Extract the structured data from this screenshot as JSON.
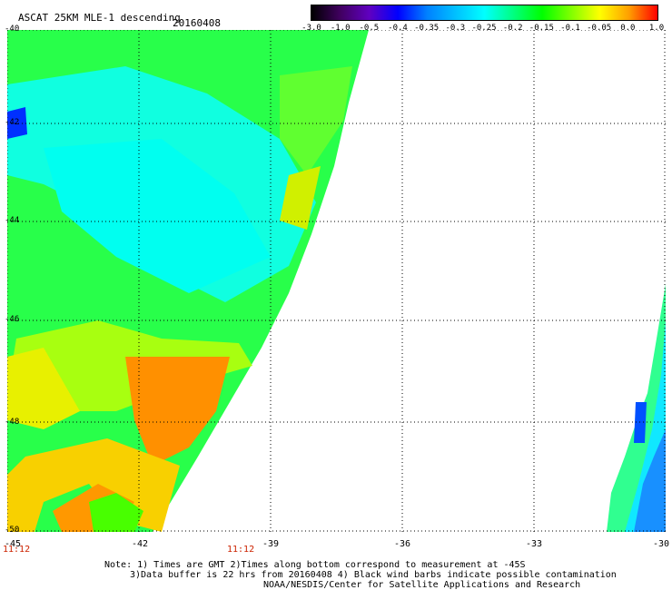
{
  "header": {
    "title": "ASCAT 25KM MLE-1 descending",
    "date": "20160408"
  },
  "colorbar": {
    "colors": [
      "#000000",
      "#400060",
      "#6000c0",
      "#0000ff",
      "#0080ff",
      "#00c0ff",
      "#00ffff",
      "#00ff80",
      "#00ff00",
      "#80ff00",
      "#ffff00",
      "#ffa000",
      "#ff0000"
    ],
    "ticks": [
      "-3.0",
      "-1.0",
      "-0.5",
      "-0.4",
      "-0.35",
      "-0.3",
      "-0.25",
      "-0.2",
      "-0.15",
      "-0.1",
      "-0.05",
      "0.0",
      "1.0"
    ]
  },
  "axes": {
    "y_labels": [
      "-40",
      "-42",
      "-44",
      "-46",
      "-48",
      "-50"
    ],
    "x_labels": [
      "-45",
      "-42",
      "-39",
      "-36",
      "-33",
      "-30"
    ],
    "time_labels": [
      "11:12",
      "11:12"
    ],
    "lat_range": [
      -50,
      -40
    ],
    "lon_range": [
      -45,
      -30
    ]
  },
  "notes": {
    "line1": "Note: 1) Times are GMT 2)Times along bottom correspond to measurement at -45S",
    "line2": "3)Data buffer is 22 hrs from 20160408 4) Black wind barbs indicate possible contamination",
    "line3": "NOAA/NESDIS/Center for Satellite Applications and Research"
  }
}
